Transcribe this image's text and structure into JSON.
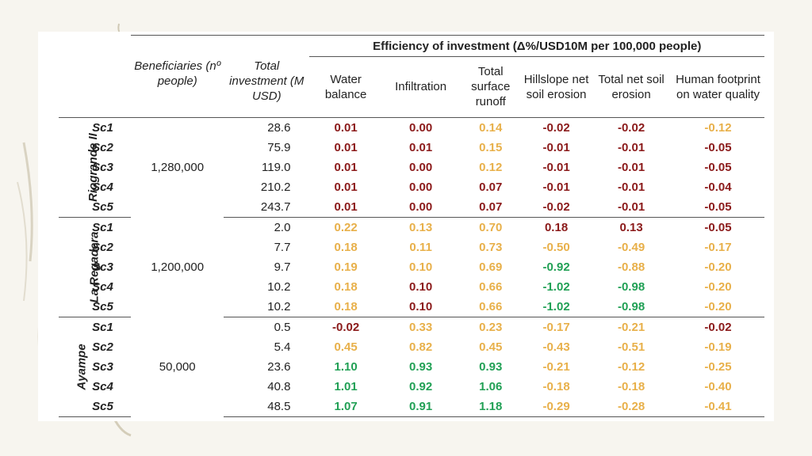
{
  "table": {
    "efficiency_header": "Efficiency of investment (Δ%/USD10M per 100,000 people)",
    "headers": {
      "beneficiaries": "Beneficiaries (nº people)",
      "investment": "Total investment (M USD)",
      "water_balance": "Water balance",
      "infiltration": "Infiltration",
      "runoff": "Total surface runoff",
      "hillslope": "Hillslope net soil erosion",
      "total_erosion": "Total net soil erosion",
      "footprint": "Human footprint on water quality"
    },
    "colors": {
      "red": "#8b1a1a",
      "yellow": "#e8b04a",
      "green": "#21a055"
    },
    "groups": [
      {
        "site": "Riogrande II",
        "beneficiaries": "1,280,000",
        "rows": [
          {
            "sc": "Sc1",
            "inv": "28.6",
            "vals": [
              "0.01",
              "0.00",
              "0.14",
              "-0.02",
              "-0.02",
              "-0.12"
            ],
            "cols": [
              "red",
              "red",
              "yel",
              "red",
              "red",
              "yel"
            ]
          },
          {
            "sc": "Sc2",
            "inv": "75.9",
            "vals": [
              "0.01",
              "0.01",
              "0.15",
              "-0.01",
              "-0.01",
              "-0.05"
            ],
            "cols": [
              "red",
              "red",
              "yel",
              "red",
              "red",
              "red"
            ]
          },
          {
            "sc": "Sc3",
            "inv": "119.0",
            "vals": [
              "0.01",
              "0.00",
              "0.12",
              "-0.01",
              "-0.01",
              "-0.05"
            ],
            "cols": [
              "red",
              "red",
              "yel",
              "red",
              "red",
              "red"
            ]
          },
          {
            "sc": "Sc4",
            "inv": "210.2",
            "vals": [
              "0.01",
              "0.00",
              "0.07",
              "-0.01",
              "-0.01",
              "-0.04"
            ],
            "cols": [
              "red",
              "red",
              "red",
              "red",
              "red",
              "red"
            ]
          },
          {
            "sc": "Sc5",
            "inv": "243.7",
            "vals": [
              "0.01",
              "0.00",
              "0.07",
              "-0.02",
              "-0.01",
              "-0.05"
            ],
            "cols": [
              "red",
              "red",
              "red",
              "red",
              "red",
              "red"
            ]
          }
        ]
      },
      {
        "site": "La Regadera",
        "beneficiaries": "1,200,000",
        "rows": [
          {
            "sc": "Sc1",
            "inv": "2.0",
            "vals": [
              "0.22",
              "0.13",
              "0.70",
              "0.18",
              "0.13",
              "-0.05"
            ],
            "cols": [
              "yel",
              "yel",
              "yel",
              "red",
              "red",
              "red"
            ]
          },
          {
            "sc": "Sc2",
            "inv": "7.7",
            "vals": [
              "0.18",
              "0.11",
              "0.73",
              "-0.50",
              "-0.49",
              "-0.17"
            ],
            "cols": [
              "yel",
              "yel",
              "yel",
              "yel",
              "yel",
              "yel"
            ]
          },
          {
            "sc": "Sc3",
            "inv": "9.7",
            "vals": [
              "0.19",
              "0.10",
              "0.69",
              "-0.92",
              "-0.88",
              "-0.20"
            ],
            "cols": [
              "yel",
              "yel",
              "yel",
              "grn",
              "yel",
              "yel"
            ]
          },
          {
            "sc": "Sc4",
            "inv": "10.2",
            "vals": [
              "0.18",
              "0.10",
              "0.66",
              "-1.02",
              "-0.98",
              "-0.20"
            ],
            "cols": [
              "yel",
              "red",
              "yel",
              "grn",
              "grn",
              "yel"
            ]
          },
          {
            "sc": "Sc5",
            "inv": "10.2",
            "vals": [
              "0.18",
              "0.10",
              "0.66",
              "-1.02",
              "-0.98",
              "-0.20"
            ],
            "cols": [
              "yel",
              "red",
              "yel",
              "grn",
              "grn",
              "yel"
            ]
          }
        ]
      },
      {
        "site": "Ayampe",
        "beneficiaries": "50,000",
        "rows": [
          {
            "sc": "Sc1",
            "inv": "0.5",
            "vals": [
              "-0.02",
              "0.33",
              "0.23",
              "-0.17",
              "-0.21",
              "-0.02"
            ],
            "cols": [
              "red",
              "yel",
              "yel",
              "yel",
              "yel",
              "red"
            ]
          },
          {
            "sc": "Sc2",
            "inv": "5.4",
            "vals": [
              "0.45",
              "0.82",
              "0.45",
              "-0.43",
              "-0.51",
              "-0.19"
            ],
            "cols": [
              "yel",
              "yel",
              "yel",
              "yel",
              "yel",
              "yel"
            ]
          },
          {
            "sc": "Sc3",
            "inv": "23.6",
            "vals": [
              "1.10",
              "0.93",
              "0.93",
              "-0.21",
              "-0.12",
              "-0.25"
            ],
            "cols": [
              "grn",
              "grn",
              "grn",
              "yel",
              "yel",
              "yel"
            ]
          },
          {
            "sc": "Sc4",
            "inv": "40.8",
            "vals": [
              "1.01",
              "0.92",
              "1.06",
              "-0.18",
              "-0.18",
              "-0.40"
            ],
            "cols": [
              "grn",
              "grn",
              "grn",
              "yel",
              "yel",
              "yel"
            ]
          },
          {
            "sc": "Sc5",
            "inv": "48.5",
            "vals": [
              "1.07",
              "0.91",
              "1.18",
              "-0.29",
              "-0.28",
              "-0.41"
            ],
            "cols": [
              "grn",
              "grn",
              "grn",
              "yel",
              "yel",
              "yel"
            ]
          }
        ]
      }
    ]
  }
}
